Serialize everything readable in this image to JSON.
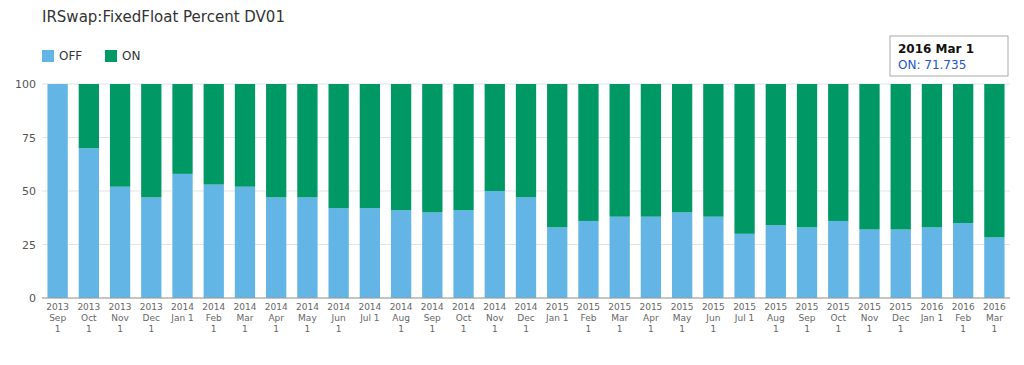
{
  "chart_data": {
    "type": "bar",
    "stacked": true,
    "title": "IRSwap:FixedFloat Percent DV01",
    "categories": [
      "2013\nSep\n1",
      "2013\nOct\n1",
      "2013\nNov\n1",
      "2013\nDec\n1",
      "2014\nJan 1",
      "2014\nFeb\n1",
      "2014\nMar\n1",
      "2014\nApr\n1",
      "2014\nMay\n1",
      "2014\nJun\n1",
      "2014\nJul 1",
      "2014\nAug\n1",
      "2014\nSep\n1",
      "2014\nOct\n1",
      "2014\nNov\n1",
      "2014\nDec\n1",
      "2015\nJan 1",
      "2015\nFeb\n1",
      "2015\nMar\n1",
      "2015\nApr\n1",
      "2015\nMay\n1",
      "2015\nJun\n1",
      "2015\nJul 1",
      "2015\nAug\n1",
      "2015\nSep\n1",
      "2015\nOct\n1",
      "2015\nNov\n1",
      "2015\nDec\n1",
      "2016\nJan 1",
      "2016\nFeb\n1",
      "2016\nMar\n1"
    ],
    "series": [
      {
        "name": "OFF",
        "color": "#62b5e5",
        "values": [
          100,
          70,
          52,
          47,
          58,
          53,
          52,
          47,
          47,
          42,
          42,
          41,
          40,
          41,
          50,
          47,
          33,
          36,
          38,
          38,
          40,
          38,
          30,
          34,
          33,
          36,
          32,
          32,
          33,
          35,
          28.3
        ]
      },
      {
        "name": "ON",
        "color": "#009966",
        "values": [
          0,
          30,
          48,
          53,
          42,
          47,
          48,
          53,
          53,
          58,
          58,
          59,
          60,
          59,
          50,
          53,
          67,
          64,
          62,
          62,
          60,
          62,
          70,
          66,
          67,
          64,
          68,
          68,
          67,
          65,
          71.7
        ]
      }
    ],
    "annotations": [
      "2016 Mar 1",
      "ON: 71.735"
    ],
    "ylim": [
      0,
      100
    ],
    "yticks": [
      0,
      25,
      50,
      75,
      100
    ],
    "grid": true,
    "legend": "upper left"
  }
}
